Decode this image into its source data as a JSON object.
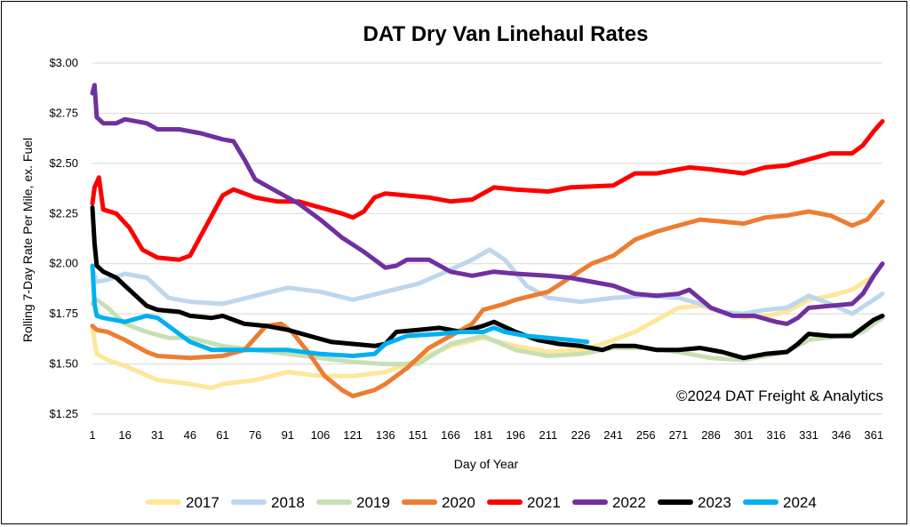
{
  "chart_data": {
    "type": "line",
    "title": "DAT Dry Van Linehaul Rates",
    "xlabel": "Day of Year",
    "ylabel": "Rolling 7-Day Rate Per Mile, ex. Fuel",
    "annotation": "©2024 DAT Freight & Analytics",
    "xlim": [
      1,
      365
    ],
    "ylim": [
      1.25,
      3.0
    ],
    "x_ticks": [
      1,
      16,
      31,
      46,
      61,
      76,
      91,
      106,
      121,
      136,
      151,
      166,
      181,
      196,
      211,
      226,
      241,
      256,
      271,
      286,
      301,
      316,
      331,
      346,
      361
    ],
    "y_ticks": [
      {
        "value": 3.0,
        "label": "$3.00"
      },
      {
        "value": 2.75,
        "label": "$2.75"
      },
      {
        "value": 2.5,
        "label": "$2.50"
      },
      {
        "value": 2.25,
        "label": "$2.25"
      },
      {
        "value": 2.0,
        "label": "$2.00"
      },
      {
        "value": 1.75,
        "label": "$1.75"
      },
      {
        "value": 1.5,
        "label": "$1.50"
      },
      {
        "value": 1.25,
        "label": "$1.25"
      }
    ],
    "grid": true,
    "legend_position": "bottom",
    "series": [
      {
        "name": "2017",
        "color": "#FFE699",
        "points": [
          [
            1,
            1.68
          ],
          [
            3,
            1.55
          ],
          [
            8,
            1.52
          ],
          [
            16,
            1.49
          ],
          [
            31,
            1.42
          ],
          [
            46,
            1.4
          ],
          [
            56,
            1.38
          ],
          [
            61,
            1.4
          ],
          [
            76,
            1.42
          ],
          [
            91,
            1.46
          ],
          [
            106,
            1.44
          ],
          [
            121,
            1.44
          ],
          [
            136,
            1.46
          ],
          [
            151,
            1.52
          ],
          [
            166,
            1.59
          ],
          [
            181,
            1.63
          ],
          [
            196,
            1.59
          ],
          [
            211,
            1.56
          ],
          [
            226,
            1.57
          ],
          [
            236,
            1.6
          ],
          [
            251,
            1.66
          ],
          [
            261,
            1.72
          ],
          [
            271,
            1.78
          ],
          [
            281,
            1.79
          ],
          [
            291,
            1.76
          ],
          [
            301,
            1.73
          ],
          [
            311,
            1.74
          ],
          [
            321,
            1.76
          ],
          [
            331,
            1.82
          ],
          [
            341,
            1.84
          ],
          [
            351,
            1.87
          ],
          [
            361,
            1.94
          ],
          [
            365,
            2.0
          ]
        ]
      },
      {
        "name": "2018",
        "color": "#BDD7EE",
        "points": [
          [
            1,
            1.97
          ],
          [
            3,
            1.91
          ],
          [
            8,
            1.92
          ],
          [
            16,
            1.95
          ],
          [
            26,
            1.93
          ],
          [
            36,
            1.83
          ],
          [
            46,
            1.81
          ],
          [
            61,
            1.8
          ],
          [
            76,
            1.84
          ],
          [
            91,
            1.88
          ],
          [
            106,
            1.86
          ],
          [
            121,
            1.82
          ],
          [
            136,
            1.86
          ],
          [
            151,
            1.9
          ],
          [
            166,
            1.97
          ],
          [
            176,
            2.02
          ],
          [
            184,
            2.07
          ],
          [
            191,
            2.02
          ],
          [
            201,
            1.89
          ],
          [
            211,
            1.83
          ],
          [
            226,
            1.81
          ],
          [
            241,
            1.83
          ],
          [
            256,
            1.84
          ],
          [
            271,
            1.83
          ],
          [
            281,
            1.8
          ],
          [
            291,
            1.76
          ],
          [
            301,
            1.75
          ],
          [
            311,
            1.77
          ],
          [
            321,
            1.78
          ],
          [
            331,
            1.84
          ],
          [
            341,
            1.8
          ],
          [
            351,
            1.75
          ],
          [
            361,
            1.82
          ],
          [
            365,
            1.85
          ]
        ]
      },
      {
        "name": "2019",
        "color": "#C6E0B4",
        "points": [
          [
            1,
            1.8
          ],
          [
            3,
            1.82
          ],
          [
            8,
            1.78
          ],
          [
            16,
            1.7
          ],
          [
            26,
            1.66
          ],
          [
            36,
            1.63
          ],
          [
            46,
            1.63
          ],
          [
            61,
            1.59
          ],
          [
            76,
            1.57
          ],
          [
            91,
            1.55
          ],
          [
            106,
            1.53
          ],
          [
            121,
            1.51
          ],
          [
            136,
            1.5
          ],
          [
            151,
            1.5
          ],
          [
            166,
            1.6
          ],
          [
            181,
            1.64
          ],
          [
            196,
            1.57
          ],
          [
            211,
            1.54
          ],
          [
            226,
            1.55
          ],
          [
            241,
            1.58
          ],
          [
            256,
            1.58
          ],
          [
            271,
            1.56
          ],
          [
            286,
            1.53
          ],
          [
            301,
            1.52
          ],
          [
            311,
            1.54
          ],
          [
            321,
            1.56
          ],
          [
            331,
            1.62
          ],
          [
            346,
            1.64
          ],
          [
            356,
            1.66
          ],
          [
            361,
            1.7
          ],
          [
            365,
            1.73
          ]
        ]
      },
      {
        "name": "2020",
        "color": "#ED7D31",
        "points": [
          [
            1,
            1.69
          ],
          [
            3,
            1.67
          ],
          [
            8,
            1.66
          ],
          [
            16,
            1.62
          ],
          [
            26,
            1.56
          ],
          [
            31,
            1.54
          ],
          [
            46,
            1.53
          ],
          [
            61,
            1.54
          ],
          [
            71,
            1.57
          ],
          [
            76,
            1.63
          ],
          [
            81,
            1.69
          ],
          [
            88,
            1.7
          ],
          [
            93,
            1.66
          ],
          [
            101,
            1.55
          ],
          [
            108,
            1.44
          ],
          [
            116,
            1.37
          ],
          [
            121,
            1.34
          ],
          [
            131,
            1.37
          ],
          [
            136,
            1.4
          ],
          [
            146,
            1.48
          ],
          [
            156,
            1.58
          ],
          [
            166,
            1.64
          ],
          [
            176,
            1.7
          ],
          [
            181,
            1.77
          ],
          [
            191,
            1.8
          ],
          [
            196,
            1.82
          ],
          [
            211,
            1.86
          ],
          [
            221,
            1.93
          ],
          [
            231,
            2.0
          ],
          [
            241,
            2.04
          ],
          [
            251,
            2.12
          ],
          [
            261,
            2.16
          ],
          [
            271,
            2.19
          ],
          [
            281,
            2.22
          ],
          [
            291,
            2.21
          ],
          [
            301,
            2.2
          ],
          [
            311,
            2.23
          ],
          [
            321,
            2.24
          ],
          [
            331,
            2.26
          ],
          [
            341,
            2.24
          ],
          [
            351,
            2.19
          ],
          [
            358,
            2.22
          ],
          [
            365,
            2.31
          ]
        ]
      },
      {
        "name": "2021",
        "color": "#FF0000",
        "points": [
          [
            1,
            2.3
          ],
          [
            2,
            2.38
          ],
          [
            4,
            2.43
          ],
          [
            6,
            2.27
          ],
          [
            12,
            2.25
          ],
          [
            18,
            2.18
          ],
          [
            24,
            2.07
          ],
          [
            31,
            2.03
          ],
          [
            41,
            2.02
          ],
          [
            46,
            2.04
          ],
          [
            53,
            2.18
          ],
          [
            61,
            2.34
          ],
          [
            66,
            2.37
          ],
          [
            76,
            2.33
          ],
          [
            86,
            2.31
          ],
          [
            96,
            2.31
          ],
          [
            106,
            2.28
          ],
          [
            116,
            2.25
          ],
          [
            121,
            2.23
          ],
          [
            126,
            2.26
          ],
          [
            131,
            2.33
          ],
          [
            136,
            2.35
          ],
          [
            146,
            2.34
          ],
          [
            156,
            2.33
          ],
          [
            166,
            2.31
          ],
          [
            176,
            2.32
          ],
          [
            181,
            2.35
          ],
          [
            186,
            2.38
          ],
          [
            196,
            2.37
          ],
          [
            211,
            2.36
          ],
          [
            221,
            2.38
          ],
          [
            241,
            2.39
          ],
          [
            251,
            2.45
          ],
          [
            261,
            2.45
          ],
          [
            271,
            2.47
          ],
          [
            276,
            2.48
          ],
          [
            286,
            2.47
          ],
          [
            301,
            2.45
          ],
          [
            311,
            2.48
          ],
          [
            321,
            2.49
          ],
          [
            331,
            2.52
          ],
          [
            341,
            2.55
          ],
          [
            351,
            2.55
          ],
          [
            356,
            2.59
          ],
          [
            361,
            2.66
          ],
          [
            365,
            2.71
          ]
        ]
      },
      {
        "name": "2022",
        "color": "#7030A0",
        "points": [
          [
            1,
            2.85
          ],
          [
            2,
            2.89
          ],
          [
            3,
            2.73
          ],
          [
            6,
            2.7
          ],
          [
            12,
            2.7
          ],
          [
            16,
            2.72
          ],
          [
            26,
            2.7
          ],
          [
            31,
            2.67
          ],
          [
            41,
            2.67
          ],
          [
            51,
            2.65
          ],
          [
            61,
            2.62
          ],
          [
            66,
            2.61
          ],
          [
            71,
            2.52
          ],
          [
            76,
            2.42
          ],
          [
            86,
            2.36
          ],
          [
            96,
            2.3
          ],
          [
            106,
            2.22
          ],
          [
            116,
            2.13
          ],
          [
            126,
            2.06
          ],
          [
            136,
            1.98
          ],
          [
            141,
            1.99
          ],
          [
            146,
            2.02
          ],
          [
            156,
            2.02
          ],
          [
            166,
            1.96
          ],
          [
            176,
            1.94
          ],
          [
            186,
            1.96
          ],
          [
            196,
            1.95
          ],
          [
            211,
            1.94
          ],
          [
            221,
            1.93
          ],
          [
            231,
            1.91
          ],
          [
            241,
            1.89
          ],
          [
            251,
            1.85
          ],
          [
            261,
            1.84
          ],
          [
            271,
            1.85
          ],
          [
            276,
            1.87
          ],
          [
            286,
            1.78
          ],
          [
            296,
            1.74
          ],
          [
            306,
            1.74
          ],
          [
            316,
            1.71
          ],
          [
            321,
            1.7
          ],
          [
            326,
            1.73
          ],
          [
            331,
            1.78
          ],
          [
            341,
            1.79
          ],
          [
            351,
            1.8
          ],
          [
            356,
            1.85
          ],
          [
            361,
            1.94
          ],
          [
            365,
            2.0
          ]
        ]
      },
      {
        "name": "2023",
        "color": "#000000",
        "points": [
          [
            1,
            2.28
          ],
          [
            2,
            2.1
          ],
          [
            3,
            1.99
          ],
          [
            6,
            1.96
          ],
          [
            12,
            1.93
          ],
          [
            16,
            1.89
          ],
          [
            22,
            1.83
          ],
          [
            26,
            1.79
          ],
          [
            31,
            1.77
          ],
          [
            41,
            1.76
          ],
          [
            46,
            1.74
          ],
          [
            56,
            1.73
          ],
          [
            61,
            1.74
          ],
          [
            71,
            1.7
          ],
          [
            81,
            1.69
          ],
          [
            91,
            1.67
          ],
          [
            101,
            1.64
          ],
          [
            111,
            1.61
          ],
          [
            121,
            1.6
          ],
          [
            131,
            1.59
          ],
          [
            136,
            1.6
          ],
          [
            141,
            1.66
          ],
          [
            151,
            1.67
          ],
          [
            161,
            1.68
          ],
          [
            171,
            1.66
          ],
          [
            181,
            1.69
          ],
          [
            186,
            1.71
          ],
          [
            196,
            1.66
          ],
          [
            206,
            1.62
          ],
          [
            216,
            1.6
          ],
          [
            226,
            1.59
          ],
          [
            236,
            1.57
          ],
          [
            241,
            1.59
          ],
          [
            251,
            1.59
          ],
          [
            261,
            1.57
          ],
          [
            271,
            1.57
          ],
          [
            281,
            1.58
          ],
          [
            291,
            1.56
          ],
          [
            301,
            1.53
          ],
          [
            311,
            1.55
          ],
          [
            321,
            1.56
          ],
          [
            326,
            1.6
          ],
          [
            331,
            1.65
          ],
          [
            341,
            1.64
          ],
          [
            351,
            1.64
          ],
          [
            356,
            1.68
          ],
          [
            361,
            1.72
          ],
          [
            365,
            1.74
          ]
        ]
      },
      {
        "name": "2024",
        "color": "#00B0F0",
        "points": [
          [
            1,
            1.99
          ],
          [
            2,
            1.8
          ],
          [
            3,
            1.74
          ],
          [
            6,
            1.73
          ],
          [
            16,
            1.71
          ],
          [
            26,
            1.74
          ],
          [
            31,
            1.73
          ],
          [
            41,
            1.65
          ],
          [
            46,
            1.61
          ],
          [
            56,
            1.57
          ],
          [
            71,
            1.57
          ],
          [
            91,
            1.57
          ],
          [
            106,
            1.55
          ],
          [
            121,
            1.54
          ],
          [
            131,
            1.55
          ],
          [
            136,
            1.6
          ],
          [
            146,
            1.64
          ],
          [
            161,
            1.65
          ],
          [
            171,
            1.66
          ],
          [
            181,
            1.66
          ],
          [
            186,
            1.68
          ],
          [
            191,
            1.66
          ],
          [
            201,
            1.64
          ],
          [
            211,
            1.63
          ],
          [
            221,
            1.62
          ],
          [
            229,
            1.61
          ]
        ]
      }
    ]
  }
}
